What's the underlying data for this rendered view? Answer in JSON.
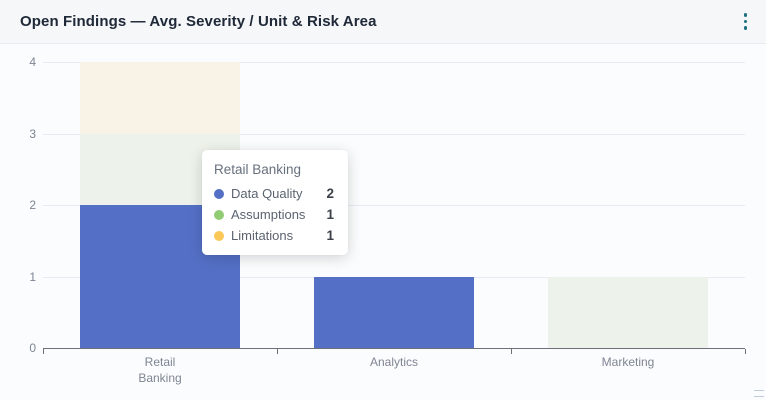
{
  "header": {
    "title": "Open Findings — Avg. Severity / Unit & Risk Area"
  },
  "chart_data": {
    "type": "bar",
    "stacked": true,
    "title": "Open Findings — Avg. Severity / Unit & Risk Area",
    "categories": [
      "Retail Banking",
      "Analytics",
      "Marketing"
    ],
    "series": [
      {
        "name": "Data Quality",
        "color": "#5470c6",
        "fill": "#5470c6",
        "dimmed": false,
        "values": [
          2,
          1,
          0
        ]
      },
      {
        "name": "Assumptions",
        "color": "#91cc75",
        "fill": "#edf3ea",
        "dimmed": true,
        "values": [
          1,
          0,
          1
        ]
      },
      {
        "name": "Limitations",
        "color": "#fac858",
        "fill": "#f9f2e6",
        "dimmed": true,
        "values": [
          1,
          0,
          0
        ]
      }
    ],
    "xlabel": "",
    "ylabel": "",
    "ylim": [
      0,
      4
    ],
    "yticks": [
      0,
      1,
      2,
      3,
      4
    ],
    "grid": true,
    "legend_position": "none",
    "hovered_category": "Retail Banking"
  },
  "tooltip": {
    "title": "Retail Banking",
    "rows": [
      {
        "label": "Data Quality",
        "value": "2",
        "color": "#5470c6"
      },
      {
        "label": "Assumptions",
        "value": "1",
        "color": "#91cc75"
      },
      {
        "label": "Limitations",
        "value": "1",
        "color": "#fac858"
      }
    ]
  },
  "colors": {
    "accent_blue": "#5470c6",
    "accent_green": "#91cc75",
    "accent_yellow": "#fac858",
    "axis_line": "#6e7079",
    "grid_line": "#e6eaf4",
    "axis_label": "#7e8593",
    "header_bg": "#f5f7f9",
    "body_bg": "#fbfcfd",
    "title_color": "#202938",
    "kebab_color": "#1e6f7f"
  }
}
